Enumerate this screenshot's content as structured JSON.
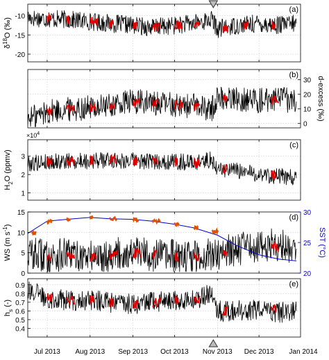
{
  "chart_data": [
    {
      "type": "line",
      "panel_label": "(a)",
      "ylabel_main": "δ",
      "ylabel_super": "18",
      "ylabel_rest": "O (‰)",
      "ylim": [
        -22,
        -7
      ],
      "yticks": [
        -20,
        -15,
        -10
      ],
      "yticklabels": [
        "-20",
        "-15",
        "-10"
      ],
      "ylabel_side": "left",
      "grid": true,
      "series": [
        {
          "color": "#000000",
          "x": [
            "2013-06-17",
            "2013-07-01",
            "2013-07-15",
            "2013-08-01",
            "2013-08-15",
            "2013-09-01",
            "2013-09-15",
            "2013-10-01",
            "2013-10-15",
            "2013-10-28",
            "2013-11-01",
            "2013-11-15",
            "2013-12-01",
            "2013-12-15",
            "2013-12-28"
          ],
          "y": [
            -10.5,
            -10.8,
            -11.0,
            -11.5,
            -12.0,
            -12.5,
            -13.0,
            -12.5,
            -12.0,
            -11.0,
            -13.5,
            -12.5,
            -12.0,
            -12.5,
            -12.0
          ]
        },
        {
          "color": "#e00000",
          "x": [
            "2013-07-01",
            "2013-07-15",
            "2013-08-01",
            "2013-08-15",
            "2013-09-01",
            "2013-09-15",
            "2013-10-01",
            "2013-10-15",
            "2013-11-05",
            "2013-11-20",
            "2013-12-10"
          ],
          "y": [
            -10.8,
            -11.0,
            -11.5,
            -12.0,
            -12.5,
            -13.0,
            -12.5,
            -12.0,
            -13.5,
            -12.5,
            -12.5
          ]
        }
      ]
    },
    {
      "type": "line",
      "panel_label": "(b)",
      "ylabel": "d-excess (‰)",
      "ylabel_side": "right",
      "ylim": [
        -3,
        37
      ],
      "yticks": [
        0,
        10,
        20,
        30
      ],
      "yticklabels": [
        "0",
        "10",
        "20",
        "30"
      ],
      "grid": true,
      "series": [
        {
          "color": "#000000",
          "x": [
            "2013-06-17",
            "2013-07-01",
            "2013-07-15",
            "2013-08-01",
            "2013-08-15",
            "2013-09-01",
            "2013-09-15",
            "2013-10-01",
            "2013-10-15",
            "2013-10-28",
            "2013-11-01",
            "2013-11-15",
            "2013-12-01",
            "2013-12-15",
            "2013-12-28"
          ],
          "y": [
            3,
            8,
            10,
            11,
            12,
            15,
            14,
            13,
            12,
            10,
            18,
            17,
            16,
            17,
            15
          ]
        },
        {
          "color": "#e00000",
          "x": [
            "2013-07-01",
            "2013-07-15",
            "2013-08-01",
            "2013-08-15",
            "2013-09-01",
            "2013-09-15",
            "2013-10-01",
            "2013-10-15",
            "2013-11-05",
            "2013-12-10"
          ],
          "y": [
            8,
            10,
            11,
            12,
            15,
            14,
            13,
            12,
            18,
            16
          ]
        }
      ]
    },
    {
      "type": "line",
      "panel_label": "(c)",
      "ylabel_main": "H",
      "ylabel_sub": "2",
      "ylabel_rest": "O (ppmv)",
      "ylabel_side": "left",
      "exponent_label": "×10",
      "exponent_power": "4",
      "ylim": [
        0.6,
        3.9
      ],
      "yticks": [
        1,
        2,
        3
      ],
      "yticklabels": [
        "1",
        "2",
        "3"
      ],
      "grid": true,
      "series": [
        {
          "color": "#000000",
          "x": [
            "2013-06-17",
            "2013-07-01",
            "2013-07-15",
            "2013-08-01",
            "2013-08-15",
            "2013-09-01",
            "2013-09-15",
            "2013-10-01",
            "2013-10-15",
            "2013-10-28",
            "2013-11-01",
            "2013-11-15",
            "2013-12-01",
            "2013-12-15",
            "2013-12-28"
          ],
          "y": [
            2.6,
            2.7,
            2.7,
            2.75,
            2.8,
            2.75,
            2.7,
            2.7,
            2.65,
            2.8,
            2.3,
            2.2,
            2.0,
            1.9,
            1.8
          ]
        },
        {
          "color": "#e00000",
          "x": [
            "2013-07-01",
            "2013-07-15",
            "2013-08-01",
            "2013-08-15",
            "2013-09-01",
            "2013-09-15",
            "2013-10-01",
            "2013-10-15",
            "2013-11-05",
            "2013-12-10"
          ],
          "y": [
            2.7,
            2.7,
            2.75,
            2.8,
            2.75,
            2.7,
            2.7,
            2.65,
            2.3,
            2.0
          ]
        }
      ]
    },
    {
      "type": "line",
      "panel_label": "(d)",
      "ylabel_main": "WS (m s",
      "ylabel_super": "-1",
      "ylabel_rest": ")",
      "ylabel_side": "left",
      "ylim": [
        0,
        15
      ],
      "yticks": [
        0,
        5,
        10,
        15
      ],
      "yticklabels": [
        "0",
        "5",
        "10",
        "15"
      ],
      "y2label": "SST (°C)",
      "y2lim": [
        20,
        30
      ],
      "y2ticks": [
        20,
        25,
        30
      ],
      "y2ticklabels": [
        "20",
        "25",
        "30"
      ],
      "y2color": "#0000cc",
      "grid": true,
      "series": [
        {
          "color": "#000000",
          "axis": "left",
          "x": [
            "2013-06-17",
            "2013-07-01",
            "2013-07-15",
            "2013-08-01",
            "2013-08-15",
            "2013-09-01",
            "2013-09-15",
            "2013-10-01",
            "2013-10-15",
            "2013-10-28",
            "2013-11-01",
            "2013-11-15",
            "2013-12-01",
            "2013-12-15",
            "2013-12-28"
          ],
          "y": [
            5,
            4,
            4.5,
            4,
            4.5,
            5,
            4.5,
            4,
            4,
            4.5,
            5,
            6,
            6.5,
            7,
            6
          ]
        },
        {
          "color": "#e00000",
          "axis": "left",
          "x": [
            "2013-07-01",
            "2013-07-15",
            "2013-08-01",
            "2013-08-15",
            "2013-09-01",
            "2013-09-15",
            "2013-10-01",
            "2013-10-15",
            "2013-11-05",
            "2013-12-10"
          ],
          "y": [
            4,
            4.5,
            4,
            4.5,
            5,
            4.5,
            4,
            4,
            5,
            6.5
          ]
        },
        {
          "color": "#0000cc",
          "axis": "right",
          "x": [
            "2013-06-17",
            "2013-07-01",
            "2013-07-15",
            "2013-08-01",
            "2013-08-15",
            "2013-09-01",
            "2013-09-15",
            "2013-10-01",
            "2013-10-15",
            "2013-11-01",
            "2013-11-15",
            "2013-12-01",
            "2013-12-15",
            "2013-12-28"
          ],
          "y": [
            26.5,
            28.5,
            28.8,
            29.1,
            28.9,
            28.8,
            28.5,
            28.0,
            27.4,
            26.2,
            24.5,
            23.0,
            22.3,
            22.0
          ]
        },
        {
          "color": "#e05000",
          "axis": "right",
          "x": [
            "2013-06-20",
            "2013-07-01",
            "2013-07-15",
            "2013-08-01",
            "2013-08-15",
            "2013-09-01",
            "2013-09-15",
            "2013-10-01",
            "2013-10-15",
            "2013-10-28"
          ],
          "y": [
            26.6,
            28.5,
            28.8,
            29.1,
            28.9,
            28.8,
            28.5,
            28.0,
            27.4,
            26.8
          ]
        }
      ]
    },
    {
      "type": "line",
      "panel_label": "(e)",
      "ylabel_main": "h",
      "ylabel_sub": "s",
      "ylabel_rest": " (-)",
      "ylabel_side": "left",
      "ylim": [
        0.3,
        0.97
      ],
      "yticks": [
        0.4,
        0.5,
        0.6,
        0.7,
        0.8,
        0.9
      ],
      "yticklabels": [
        "0.4",
        "0.5",
        "0.6",
        "0.7",
        "0.8",
        "0.9"
      ],
      "grid": true,
      "series": [
        {
          "color": "#000000",
          "x": [
            "2013-06-17",
            "2013-07-01",
            "2013-07-15",
            "2013-08-01",
            "2013-08-15",
            "2013-09-01",
            "2013-09-15",
            "2013-10-01",
            "2013-10-15",
            "2013-10-28",
            "2013-11-01",
            "2013-11-15",
            "2013-12-01",
            "2013-12-15",
            "2013-12-28"
          ],
          "y": [
            0.85,
            0.75,
            0.72,
            0.73,
            0.7,
            0.68,
            0.7,
            0.72,
            0.73,
            0.8,
            0.6,
            0.6,
            0.62,
            0.58,
            0.6
          ]
        },
        {
          "color": "#e00000",
          "x": [
            "2013-07-01",
            "2013-07-15",
            "2013-08-01",
            "2013-08-15",
            "2013-09-01",
            "2013-09-15",
            "2013-10-01",
            "2013-10-15",
            "2013-11-05",
            "2013-12-10"
          ],
          "y": [
            0.75,
            0.72,
            0.73,
            0.7,
            0.68,
            0.7,
            0.72,
            0.73,
            0.6,
            0.62
          ]
        }
      ]
    }
  ],
  "shared_x": {
    "range": [
      "2013-06-17",
      "2013-12-31"
    ],
    "ticks": [
      "2013-07-01",
      "2013-08-01",
      "2013-09-01",
      "2013-10-01",
      "2013-11-01",
      "2013-12-01",
      "2014-01-01"
    ],
    "ticklabels": [
      "Jul 2013",
      "Aug 2013",
      "Sep 2013",
      "Oct 2013",
      "Nov 2013",
      "Dec 2013",
      "Jan 2014"
    ]
  },
  "markers": {
    "date": "2013-10-29",
    "top": "down-triangle",
    "bottom": "up-triangle",
    "color": "#888888"
  }
}
